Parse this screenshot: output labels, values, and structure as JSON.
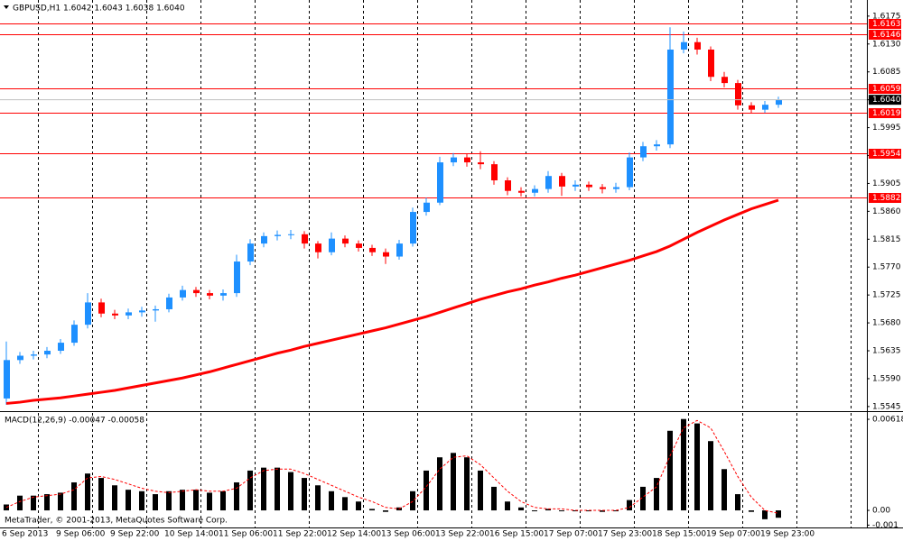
{
  "chart_data": [
    {
      "type": "candlestick",
      "title": "GBPUSD,H1  1.6042 1.6043 1.6038 1.6040",
      "categories": [
        "6 Sep 2013",
        "9 Sep 06:00",
        "9 Sep 22:00",
        "10 Sep 14:00",
        "11 Sep 06:00",
        "11 Sep 22:00",
        "12 Sep 14:00",
        "13 Sep 06:00",
        "13 Sep 22:00",
        "16 Sep 15:00",
        "17 Sep 07:00",
        "17 Sep 23:00",
        "18 Sep 15:00",
        "19 Sep 07:00",
        "19 Sep 23:00"
      ],
      "open": [
        1.5558,
        1.562,
        1.5627,
        1.5629,
        1.5635,
        1.5648,
        1.5677,
        1.5713,
        1.5695,
        1.5692,
        1.5697,
        1.57,
        1.5702,
        1.5721,
        1.5733,
        1.5728,
        1.5724,
        1.5728,
        1.5779,
        1.5808,
        1.582,
        1.5822,
        1.5823,
        1.5808,
        1.5794,
        1.5816,
        1.5808,
        1.5801,
        1.5794,
        1.5787,
        1.5808,
        1.5859,
        1.5874,
        1.5939,
        1.5947,
        1.5939,
        1.5936,
        1.591,
        1.5893,
        1.589,
        1.5896,
        1.5917,
        1.59,
        1.5903,
        1.5899,
        1.5896,
        1.5899,
        1.5947,
        1.5965,
        1.5968,
        1.6121,
        1.6133,
        1.6121,
        1.6077,
        1.6067,
        1.6031,
        1.6024,
        1.6032
      ],
      "high": [
        1.565,
        1.5633,
        1.5635,
        1.5641,
        1.5654,
        1.5684,
        1.5728,
        1.5719,
        1.5701,
        1.5703,
        1.5706,
        1.5708,
        1.5727,
        1.574,
        1.5738,
        1.5733,
        1.5734,
        1.579,
        1.5815,
        1.5826,
        1.5829,
        1.583,
        1.5828,
        1.5812,
        1.5826,
        1.5821,
        1.5813,
        1.5806,
        1.58,
        1.5814,
        1.5866,
        1.5882,
        1.5948,
        1.5954,
        1.5953,
        1.5957,
        1.5941,
        1.5915,
        1.5899,
        1.5902,
        1.5925,
        1.5922,
        1.591,
        1.5908,
        1.5904,
        1.5906,
        1.5955,
        1.5972,
        1.5975,
        1.6157,
        1.615,
        1.614,
        1.6126,
        1.6085,
        1.6072,
        1.6036,
        1.6038,
        1.6045
      ],
      "low": [
        1.5548,
        1.5614,
        1.5621,
        1.5623,
        1.563,
        1.5643,
        1.5671,
        1.5689,
        1.5686,
        1.5686,
        1.569,
        1.5682,
        1.5697,
        1.5716,
        1.5722,
        1.5718,
        1.5716,
        1.5722,
        1.5773,
        1.5802,
        1.5813,
        1.5815,
        1.58,
        1.5784,
        1.5789,
        1.5802,
        1.5795,
        1.5788,
        1.5775,
        1.5782,
        1.5803,
        1.5853,
        1.587,
        1.5933,
        1.5932,
        1.5928,
        1.5903,
        1.5886,
        1.5884,
        1.5884,
        1.589,
        1.5885,
        1.5893,
        1.5893,
        1.5889,
        1.589,
        1.5894,
        1.5941,
        1.5958,
        1.5962,
        1.6115,
        1.6113,
        1.607,
        1.606,
        1.6024,
        1.6018,
        1.6019,
        1.6027
      ],
      "close": [
        1.562,
        1.5627,
        1.5629,
        1.5635,
        1.5648,
        1.5677,
        1.5713,
        1.5695,
        1.5692,
        1.5697,
        1.57,
        1.5702,
        1.5721,
        1.5733,
        1.5728,
        1.5724,
        1.5728,
        1.5779,
        1.5808,
        1.582,
        1.5822,
        1.5823,
        1.5808,
        1.5794,
        1.5816,
        1.5808,
        1.5801,
        1.5794,
        1.5787,
        1.5808,
        1.5859,
        1.5874,
        1.5939,
        1.5947,
        1.5939,
        1.5936,
        1.591,
        1.5893,
        1.589,
        1.5896,
        1.5917,
        1.59,
        1.5903,
        1.5899,
        1.5896,
        1.5899,
        1.5947,
        1.5965,
        1.5968,
        1.6121,
        1.6133,
        1.6121,
        1.6077,
        1.6067,
        1.6031,
        1.6024,
        1.6032,
        1.604
      ],
      "up_color": "#1e90ff",
      "down_color": "#ff0000",
      "moving_average": {
        "color": "#ff0000",
        "values": [
          1.555,
          1.5552,
          1.5555,
          1.5557,
          1.5559,
          1.5562,
          1.5565,
          1.5568,
          1.5571,
          1.5575,
          1.5579,
          1.5583,
          1.5587,
          1.5591,
          1.5596,
          1.5601,
          1.5607,
          1.5613,
          1.5619,
          1.5625,
          1.5631,
          1.5636,
          1.5642,
          1.5647,
          1.5652,
          1.5657,
          1.5662,
          1.5667,
          1.5672,
          1.5678,
          1.5684,
          1.569,
          1.5697,
          1.5704,
          1.5711,
          1.5718,
          1.5724,
          1.573,
          1.5735,
          1.5741,
          1.5746,
          1.5752,
          1.5757,
          1.5763,
          1.5769,
          1.5775,
          1.5781,
          1.5788,
          1.5795,
          1.5804,
          1.5815,
          1.5826,
          1.5836,
          1.5846,
          1.5855,
          1.5864,
          1.5871,
          1.5878
        ]
      },
      "levels": {
        "color": "#ff0000",
        "values": [
          1.6163,
          1.6146,
          1.6059,
          1.6019,
          1.5954,
          1.5882
        ]
      },
      "last_price": {
        "value": 1.604,
        "label": "1.6040"
      },
      "ylim": [
        1.5539,
        1.6201
      ],
      "yticks": [
        1.6175,
        {
          "value": 1.613,
          "label": "1.6130"
        },
        1.6085,
        {
          "value": 1.604,
          "label": "1.6040"
        },
        1.5995,
        {
          "value": 1.595,
          "label": "1.5950"
        },
        1.5905,
        {
          "value": 1.586,
          "label": "1.5860"
        },
        1.5815,
        {
          "value": 1.577,
          "label": "1.5770"
        },
        1.5725,
        {
          "value": 1.568,
          "label": "1.5680"
        },
        1.5635,
        {
          "value": 1.559,
          "label": "1.5590"
        },
        1.5545
      ],
      "grid": true
    },
    {
      "type": "bar",
      "title": "MACD(12,26,9) -0.00047 -0.00058",
      "annotation": "MetaTrader, © 2001-2013, MetaQuotes Software Corp.",
      "color": "#000000",
      "values": [
        0.0004,
        0.001,
        0.001,
        0.0011,
        0.0012,
        0.0019,
        0.0025,
        0.0022,
        0.0017,
        0.0014,
        0.0013,
        0.0011,
        0.0013,
        0.0014,
        0.0014,
        0.0012,
        0.0013,
        0.0019,
        0.0027,
        0.0029,
        0.0029,
        0.0026,
        0.0022,
        0.0017,
        0.0013,
        0.0009,
        0.0006,
        0.0001,
        -0.0001,
        0.0002,
        0.0013,
        0.0027,
        0.0036,
        0.0039,
        0.0036,
        0.0027,
        0.0016,
        0.0006,
        0.0002,
        0,
        0.0001,
        0,
        0,
        0,
        -0.0001,
        0,
        0.0007,
        0.0016,
        0.0022,
        0.0054,
        0.0062,
        0.0059,
        0.0047,
        0.0028,
        0.0011,
        -0.0001,
        -0.0006,
        -0.0005
      ],
      "signal": {
        "color": "#ff0000",
        "values": [
          0.0002,
          0.0006,
          0.0009,
          0.001,
          0.0011,
          0.0014,
          0.0022,
          0.0023,
          0.0021,
          0.0018,
          0.0015,
          0.0013,
          0.0012,
          0.0013,
          0.0014,
          0.0013,
          0.0013,
          0.0015,
          0.0022,
          0.0027,
          0.0028,
          0.0028,
          0.0025,
          0.0021,
          0.0017,
          0.0013,
          0.0009,
          0.0006,
          0.0002,
          0.0001,
          0.0006,
          0.0016,
          0.0028,
          0.0036,
          0.0037,
          0.0031,
          0.0022,
          0.0013,
          0.0006,
          0.0002,
          0.0001,
          0.0001,
          0,
          0,
          0,
          0,
          0.0002,
          0.0009,
          0.0016,
          0.0037,
          0.0056,
          0.0061,
          0.0056,
          0.004,
          0.0023,
          0.0009,
          0,
          -0.0002
        ]
      },
      "ylim": [
        -0.00116,
        0.00661
      ],
      "yticks": [
        0.00618,
        {
          "value": 0,
          "label": "0.00"
        },
        -0.001
      ]
    }
  ]
}
